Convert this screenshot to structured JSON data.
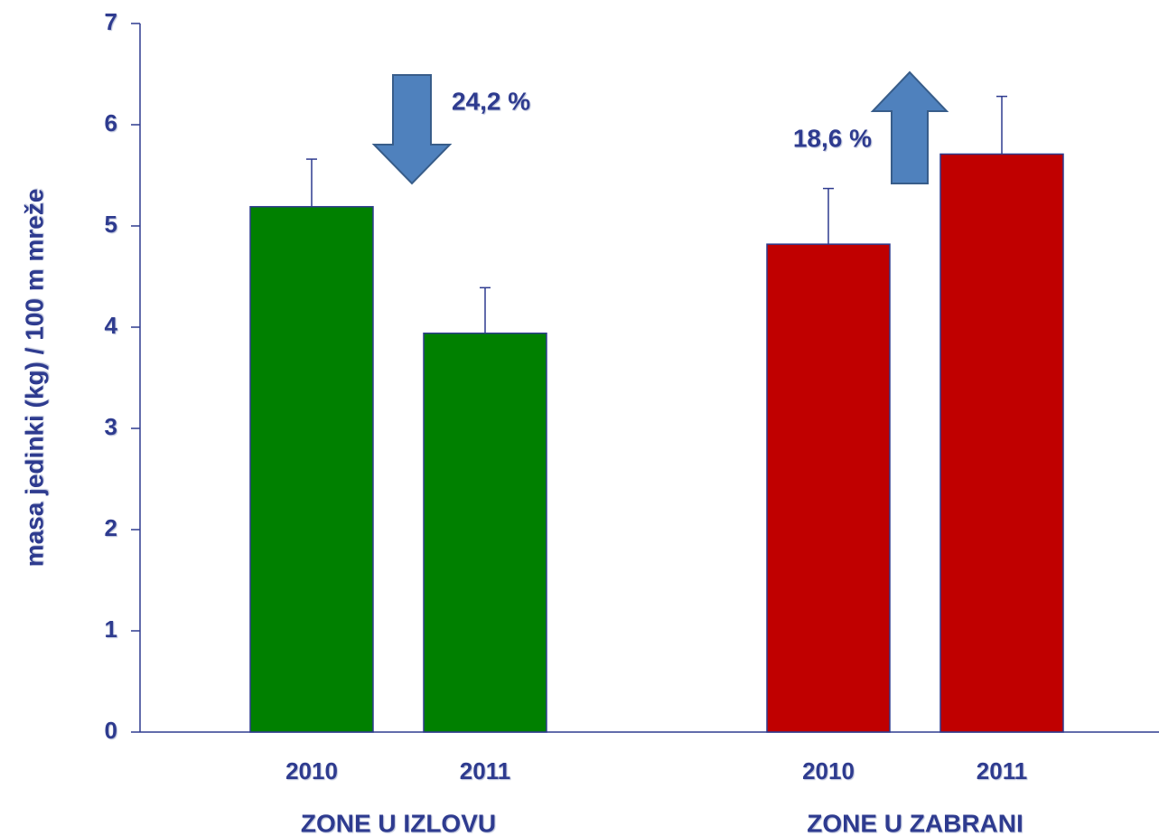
{
  "chart_data": {
    "type": "bar",
    "y_label": "masa jedinki (kg) / 100 m mreže",
    "ylim": [
      0,
      7
    ],
    "yticks": [
      0,
      1,
      2,
      3,
      4,
      5,
      6,
      7
    ],
    "groups": [
      {
        "name": "ZONE U IZLOVU",
        "color": "#008000",
        "categories": [
          "2010",
          "2011"
        ],
        "values": [
          5.19,
          3.94
        ],
        "errors": [
          0.47,
          0.45
        ]
      },
      {
        "name": "ZONE U ZABRANI",
        "color": "#c00000",
        "categories": [
          "2010",
          "2011"
        ],
        "values": [
          4.82,
          5.71
        ],
        "errors": [
          0.55,
          0.57
        ]
      }
    ],
    "annotations": [
      {
        "text": "24,2 %",
        "direction": "down"
      },
      {
        "text": "18,6 %",
        "direction": "up"
      }
    ]
  }
}
